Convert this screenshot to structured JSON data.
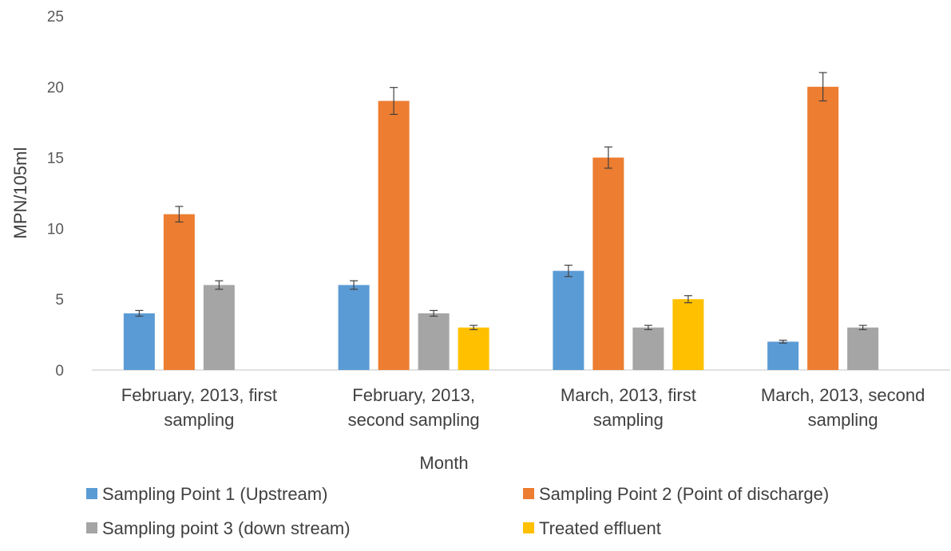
{
  "chart_data": {
    "type": "bar",
    "categories": [
      [
        "February, 2013, first",
        "sampling"
      ],
      [
        "February, 2013,",
        "second sampling"
      ],
      [
        "March, 2013, first",
        "sampling"
      ],
      [
        "March, 2013, second",
        "sampling"
      ]
    ],
    "series": [
      {
        "name": "Sampling Point 1 (Upstream)",
        "color": "#5B9BD5",
        "values": [
          4,
          6,
          7,
          2
        ],
        "errors": [
          0.2,
          0.3,
          0.4,
          0.1
        ]
      },
      {
        "name": "Sampling Point 2 (Point of discharge)",
        "color": "#ED7D31",
        "values": [
          11,
          19,
          15,
          20
        ],
        "errors": [
          0.55,
          0.95,
          0.75,
          1.0
        ]
      },
      {
        "name": "Sampling point 3 (down stream)",
        "color": "#A5A5A5",
        "values": [
          6,
          4,
          3,
          3
        ],
        "errors": [
          0.3,
          0.2,
          0.15,
          0.15
        ]
      },
      {
        "name": "Treated effluent",
        "color": "#FFC000",
        "values": [
          null,
          3,
          5,
          null
        ],
        "errors": [
          null,
          0.15,
          0.25,
          null
        ]
      }
    ],
    "xlabel": "Month",
    "ylabel": "MPN/105ml",
    "ylim": [
      0,
      25
    ],
    "yticks": [
      0,
      5,
      10,
      15,
      20,
      25
    ],
    "grid": false,
    "legend_position": "bottom"
  }
}
